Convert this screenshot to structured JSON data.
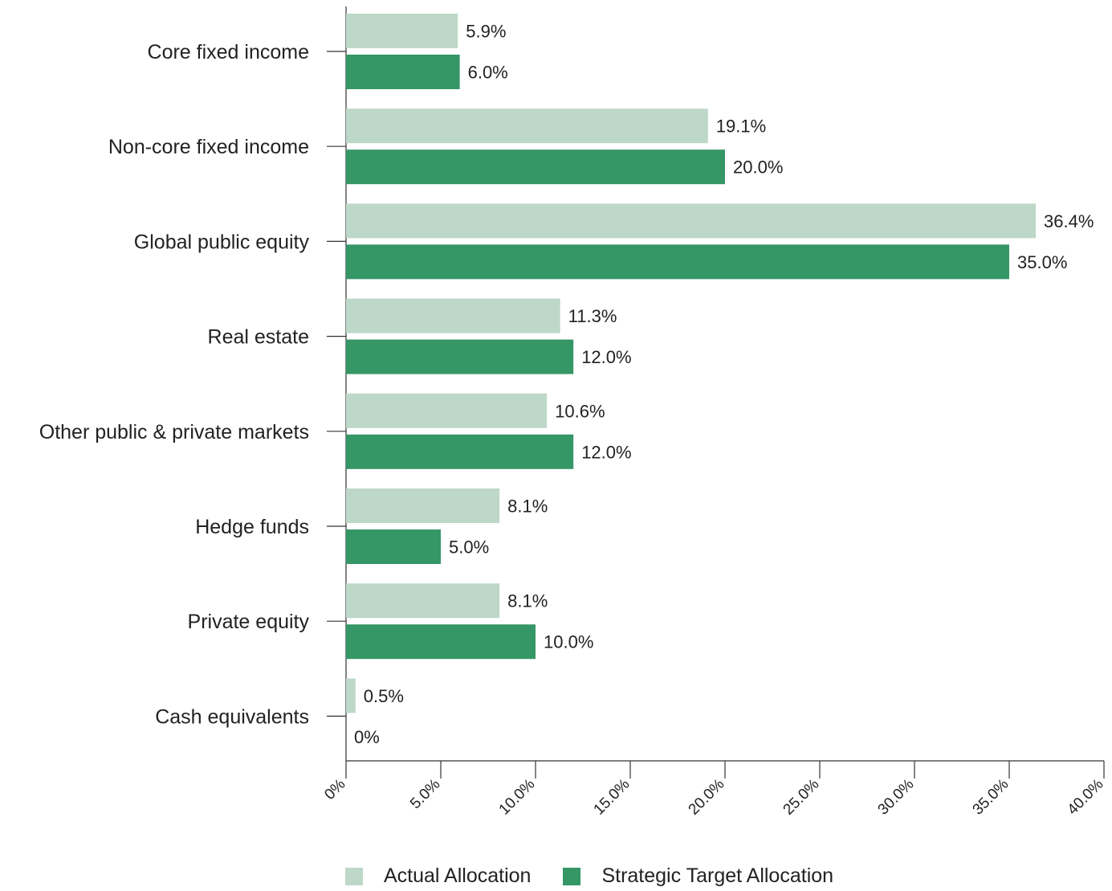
{
  "chart_data": {
    "type": "bar",
    "orientation": "horizontal",
    "categories": [
      "Core fixed income",
      "Non-core fixed income",
      "Global public equity",
      "Real estate",
      "Other public & private markets",
      "Hedge funds",
      "Private equity",
      "Cash equivalents"
    ],
    "series": [
      {
        "name": "Actual Allocation",
        "color": "#bdd8c8",
        "values": [
          5.9,
          19.1,
          36.4,
          11.3,
          10.6,
          8.1,
          8.1,
          0.5
        ],
        "labels": [
          "5.9%",
          "19.1%",
          "36.4%",
          "11.3%",
          "10.6%",
          "8.1%",
          "8.1%",
          "0.5%"
        ]
      },
      {
        "name": "Strategic Target Allocation",
        "color": "#359666",
        "values": [
          6.0,
          20.0,
          35.0,
          12.0,
          12.0,
          5.0,
          10.0,
          0
        ],
        "labels": [
          "6.0%",
          "20.0%",
          "35.0%",
          "12.0%",
          "12.0%",
          "5.0%",
          "10.0%",
          "0%"
        ]
      }
    ],
    "xlim": [
      0,
      40
    ],
    "xticks": [
      0,
      5,
      10,
      15,
      20,
      25,
      30,
      35,
      40
    ],
    "xtick_labels": [
      "0%",
      "5.0%",
      "10.0%",
      "15.0%",
      "20.0%",
      "25.0%",
      "30.0%",
      "35.0%",
      "40.0%"
    ],
    "grid": false,
    "legend_position": "bottom"
  }
}
